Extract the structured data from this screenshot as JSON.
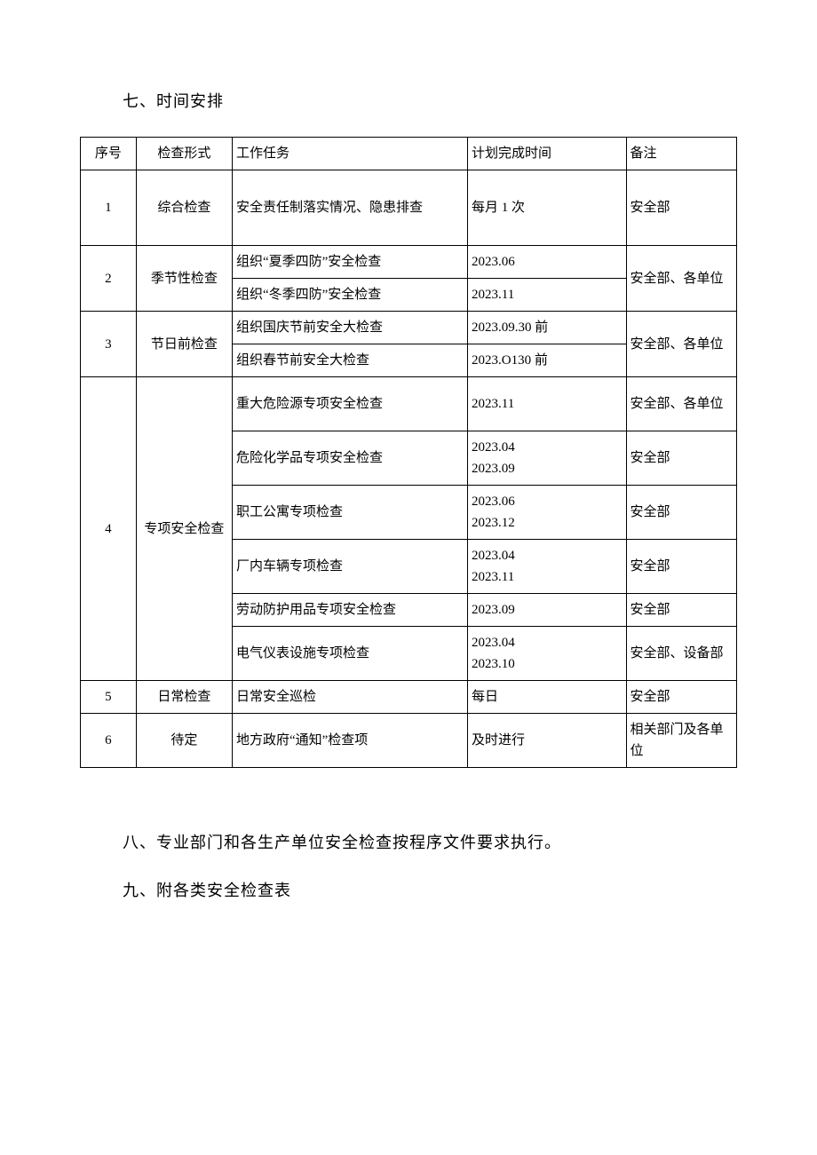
{
  "heading7": "七、时间安排",
  "heading8": "八、专业部门和各生产单位安全检查按程序文件要求执行。",
  "heading9": "九、附各类安全检查表",
  "columns": {
    "seq": "序号",
    "form": "检查形式",
    "task": "工作任务",
    "time": "计划完成时间",
    "note": "备注"
  },
  "r1": {
    "seq": "1",
    "form": "综合检查",
    "task": "安全责任制落实情况、隐患排查",
    "time": "每月 1 次",
    "note": "安全部"
  },
  "r2": {
    "seq": "2",
    "form": "季节性检查",
    "task_a": "组织“夏季四防”安全检查",
    "time_a": "2023.06",
    "task_b": "组织“冬季四防”安全检查",
    "time_b": "2023.11",
    "note": "安全部、各单位"
  },
  "r3": {
    "seq": "3",
    "form": "节日前检查",
    "task_a": "组织国庆节前安全大检查",
    "time_a": "2023.09.30 前",
    "task_b": "组织春节前安全大检查",
    "time_b": "2023.O130 前",
    "note": "安全部、各单位"
  },
  "r4": {
    "seq": "4",
    "form": "专项安全检查",
    "a": {
      "task": "重大危险源专项安全检查",
      "time": "2023.11",
      "note": "安全部、各单位"
    },
    "b": {
      "task": "危险化学品专项安全检查",
      "time": "2023.04\n2023.09",
      "note": "安全部"
    },
    "c": {
      "task": "职工公寓专项检查",
      "time": "2023.06\n2023.12",
      "note": "安全部"
    },
    "d": {
      "task": "厂内车辆专项检查",
      "time": "2023.04\n2023.11",
      "note": "安全部"
    },
    "e": {
      "task": "劳动防护用品专项安全检查",
      "time": "2023.09",
      "note": "安全部"
    },
    "f": {
      "task": "电气仪表设施专项检查",
      "time": "2023.04\n2023.10",
      "note": "安全部、设备部"
    }
  },
  "r5": {
    "seq": "5",
    "form": "日常检查",
    "task": "日常安全巡检",
    "time": "每日",
    "note": "安全部"
  },
  "r6": {
    "seq": "6",
    "form": "待定",
    "task": "地方政府“通知”检查项",
    "time": "及时进行",
    "note": "相关部门及各单位"
  }
}
